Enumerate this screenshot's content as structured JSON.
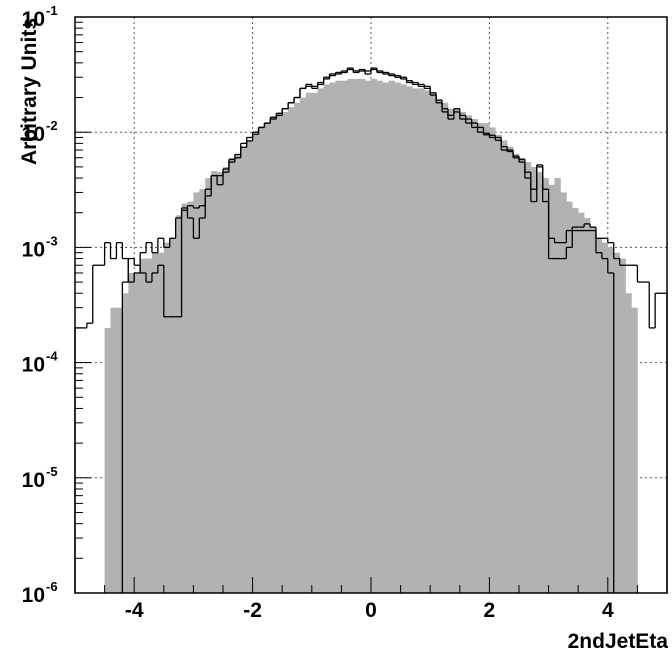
{
  "chart_data": {
    "type": "histogram",
    "xlabel": "2ndJetEta",
    "ylabel": "Arbitrary Units",
    "xlim": [
      -5,
      5
    ],
    "ylim": [
      1e-06,
      0.1
    ],
    "yscale": "log",
    "grid": true,
    "x_ticks": [
      "-4",
      "-2",
      "0",
      "2",
      "4"
    ],
    "y_ticks": [
      {
        "base": "10",
        "exp": "-6"
      },
      {
        "base": "10",
        "exp": "-5"
      },
      {
        "base": "10",
        "exp": "-4"
      },
      {
        "base": "10",
        "exp": "-3"
      },
      {
        "base": "10",
        "exp": "-2"
      },
      {
        "base": "10",
        "exp": "-1"
      }
    ],
    "bin_edges_range": [
      -5,
      5
    ],
    "n_bins": 100,
    "series": [
      {
        "style": "filled-gray",
        "color": "#b2b2b2",
        "values": [
          0,
          0,
          0,
          0,
          0,
          0.0002,
          0.0003,
          0.0003,
          0.0004,
          0.0006,
          0.0006,
          0.0008,
          0.0008,
          0.0009,
          0.0009,
          0.0011,
          0.0012,
          0.0019,
          0.0024,
          0.0025,
          0.003,
          0.0032,
          0.004,
          0.0046,
          0.0045,
          0.005,
          0.006,
          0.0063,
          0.0075,
          0.0085,
          0.0095,
          0.011,
          0.012,
          0.0135,
          0.0145,
          0.015,
          0.0165,
          0.018,
          0.02,
          0.022,
          0.022,
          0.024,
          0.026,
          0.027,
          0.028,
          0.028,
          0.029,
          0.029,
          0.029,
          0.028,
          0.029,
          0.028,
          0.027,
          0.028,
          0.027,
          0.026,
          0.025,
          0.024,
          0.024,
          0.023,
          0.022,
          0.019,
          0.018,
          0.016,
          0.016,
          0.015,
          0.014,
          0.013,
          0.012,
          0.012,
          0.011,
          0.0095,
          0.0085,
          0.0075,
          0.0065,
          0.006,
          0.0055,
          0.005,
          0.0045,
          0.004,
          0.0035,
          0.004,
          0.003,
          0.0025,
          0.0022,
          0.002,
          0.0018,
          0.0015,
          0.0012,
          0.0011,
          0.001,
          0.0009,
          0.0008,
          0.0004,
          0.0003,
          0,
          0,
          0,
          0,
          0
        ]
      },
      {
        "style": "outline-black",
        "color": "#000000",
        "values": [
          0,
          0,
          0,
          0,
          0,
          0,
          0,
          0,
          0.0005,
          0.0008,
          0.0007,
          0.0006,
          0.0005,
          0.0006,
          0.0007,
          0.00025,
          0.00025,
          0.00025,
          0.0022,
          0.0018,
          0.0012,
          0.0018,
          0.0028,
          0.0042,
          0.0035,
          0.0045,
          0.0055,
          0.006,
          0.008,
          0.009,
          0.01,
          0.011,
          0.012,
          0.013,
          0.014,
          0.016,
          0.018,
          0.02,
          0.024,
          0.025,
          0.024,
          0.026,
          0.029,
          0.031,
          0.032,
          0.033,
          0.035,
          0.033,
          0.034,
          0.032,
          0.035,
          0.033,
          0.032,
          0.031,
          0.03,
          0.029,
          0.027,
          0.026,
          0.025,
          0.024,
          0.021,
          0.018,
          0.015,
          0.013,
          0.015,
          0.013,
          0.012,
          0.011,
          0.01,
          0.0095,
          0.009,
          0.0085,
          0.007,
          0.0068,
          0.006,
          0.0055,
          0.004,
          0.0025,
          0.005,
          0.0025,
          0.0008,
          0.0008,
          0.0008,
          0.001,
          0.0014,
          0.0014,
          0.0014,
          0.0014,
          0.0009,
          0.0008,
          0.0006,
          0,
          0,
          0,
          0,
          0,
          0,
          0,
          0,
          0
        ]
      },
      {
        "style": "outline-white",
        "color": "#000000",
        "values": [
          0.0002,
          0.0002,
          0.00022,
          0.0007,
          0.0007,
          0.0011,
          0.0008,
          0.0011,
          0.0008,
          0.0005,
          0.0006,
          0.0009,
          0.0011,
          0.0009,
          0.0012,
          0.001,
          0.0012,
          0.0018,
          0.0021,
          0.0023,
          0.0022,
          0.0023,
          0.0032,
          0.0042,
          0.0042,
          0.0048,
          0.0058,
          0.0064,
          0.0074,
          0.0084,
          0.0096,
          0.011,
          0.012,
          0.0135,
          0.0146,
          0.016,
          0.018,
          0.02,
          0.024,
          0.026,
          0.025,
          0.027,
          0.03,
          0.032,
          0.033,
          0.034,
          0.036,
          0.034,
          0.035,
          0.034,
          0.036,
          0.034,
          0.033,
          0.032,
          0.031,
          0.03,
          0.028,
          0.027,
          0.026,
          0.025,
          0.022,
          0.019,
          0.016,
          0.014,
          0.016,
          0.014,
          0.013,
          0.012,
          0.011,
          0.0098,
          0.0094,
          0.009,
          0.0075,
          0.007,
          0.0062,
          0.0058,
          0.0045,
          0.0032,
          0.0052,
          0.0032,
          0.0012,
          0.0011,
          0.0011,
          0.0014,
          0.0015,
          0.0015,
          0.0016,
          0.0015,
          0.0012,
          0.0012,
          0.0011,
          0.0008,
          0.0007,
          0.0007,
          0.0007,
          0.0005,
          0.0005,
          0.0002,
          0.0004,
          0.0004
        ]
      }
    ]
  }
}
